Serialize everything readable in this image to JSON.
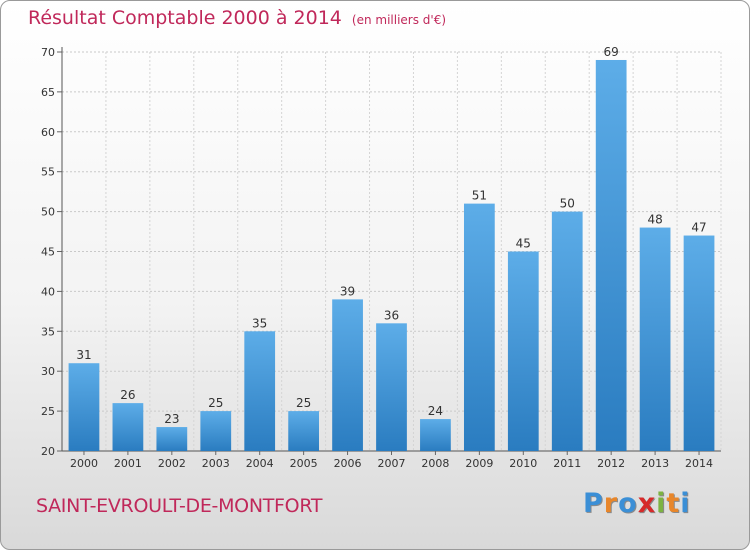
{
  "chart_data": {
    "type": "bar",
    "title": "Résultat Comptable 2000 à 2014",
    "subtitle": "(en milliers d'€)",
    "categories": [
      "2000",
      "2001",
      "2002",
      "2003",
      "2004",
      "2005",
      "2006",
      "2007",
      "2008",
      "2009",
      "2010",
      "2011",
      "2012",
      "2013",
      "2014"
    ],
    "values": [
      31,
      26,
      23,
      25,
      35,
      25,
      39,
      36,
      24,
      51,
      45,
      50,
      69,
      48,
      47
    ],
    "ylim": [
      20,
      70
    ],
    "yticks": [
      20,
      25,
      30,
      35,
      40,
      45,
      50,
      55,
      60,
      65,
      70
    ],
    "grid": true,
    "xlabel": "",
    "ylabel": ""
  },
  "footer": {
    "commune": "SAINT-EVROULT-DE-MONTFORT",
    "logo_letters": [
      "P",
      "r",
      "o",
      "x",
      "i",
      "t",
      "i"
    ],
    "logo_colors": [
      "#3b8fd6",
      "#e8862a",
      "#3b8fd6",
      "#d62a2a",
      "#7cb342",
      "#e8862a",
      "#3b8fd6"
    ]
  },
  "colors": {
    "bar_top": "#5dade8",
    "bar_bottom": "#2a7cc0",
    "accent_text": "#c0285a"
  }
}
